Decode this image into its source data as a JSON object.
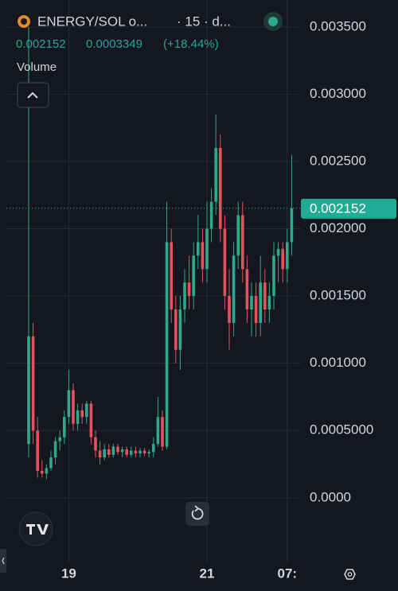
{
  "header": {
    "symbol": "ENERGY/SOL o...",
    "interval": "· 15 · d...",
    "last": "0.002152",
    "change": "0.0003349",
    "change_pct": "(+18.44%)",
    "volume": "Volume"
  },
  "chart_data": {
    "type": "candlestick",
    "categories": [
      null,
      null,
      null,
      null,
      null,
      null,
      null,
      null,
      null,
      "19",
      null,
      null,
      null,
      null,
      null,
      null,
      null,
      null,
      null,
      null,
      null,
      null,
      null,
      null,
      null,
      null,
      null,
      null,
      null,
      null,
      null,
      null,
      null,
      null,
      null,
      null,
      null,
      null,
      null,
      null,
      "21",
      null,
      null,
      null,
      null,
      null,
      null,
      null,
      null,
      null,
      null,
      null,
      null,
      null,
      null,
      null,
      null,
      null,
      "07:",
      null
    ],
    "open": [
      0.0004,
      0.0012,
      0.0005,
      0.0002,
      0.00018,
      0.00022,
      0.0003,
      0.00042,
      0.00045,
      0.0006,
      0.0008,
      0.00055,
      0.00065,
      0.0006,
      0.0007,
      0.00045,
      0.00035,
      0.0003,
      0.00036,
      0.00032,
      0.00038,
      0.00034,
      0.00036,
      0.00032,
      0.00035,
      0.00033,
      0.00035,
      0.00033,
      0.00034,
      0.0004,
      0.0006,
      0.00038,
      0.0019,
      0.0014,
      0.0011,
      0.0014,
      0.0016,
      0.0015,
      0.0018,
      0.0019,
      0.0017,
      0.002,
      0.0022,
      0.0026,
      0.002,
      0.0015,
      0.0013,
      0.0018,
      0.0021,
      0.0017,
      0.0014,
      0.0015,
      0.0013,
      0.0016,
      0.0014,
      0.0015,
      0.0018,
      0.00185,
      0.0017,
      0.0019
    ],
    "high": [
      0.0035,
      0.0013,
      0.0006,
      0.00028,
      0.00025,
      0.00035,
      0.00045,
      0.0005,
      0.00065,
      0.00095,
      0.00085,
      0.0007,
      0.0007,
      0.00072,
      0.00072,
      0.0005,
      0.00042,
      0.0004,
      0.0004,
      0.0004,
      0.0004,
      0.00038,
      0.00038,
      0.00038,
      0.00038,
      0.00037,
      0.00037,
      0.00036,
      0.00045,
      0.00075,
      0.00065,
      0.0022,
      0.002,
      0.0015,
      0.0015,
      0.0017,
      0.0018,
      0.0019,
      0.0021,
      0.002,
      0.0022,
      0.0023,
      0.00285,
      0.0027,
      0.0021,
      0.0017,
      0.0019,
      0.0022,
      0.0022,
      0.0018,
      0.0016,
      0.0016,
      0.0018,
      0.0017,
      0.0016,
      0.0019,
      0.0019,
      0.0019,
      0.002,
      0.00255
    ],
    "low": [
      0.0003,
      0.0004,
      0.00015,
      0.00015,
      0.00014,
      0.0002,
      0.00025,
      0.00035,
      0.0004,
      0.00055,
      0.0005,
      0.0005,
      0.00055,
      0.00055,
      0.0004,
      0.0003,
      0.00025,
      0.00028,
      0.0003,
      0.0003,
      0.00032,
      0.0003,
      0.0003,
      0.0003,
      0.0003,
      0.0003,
      0.00031,
      0.0003,
      0.0003,
      0.00038,
      0.00035,
      0.00036,
      0.0013,
      0.001,
      0.00095,
      0.0013,
      0.0014,
      0.0014,
      0.0017,
      0.0016,
      0.0016,
      0.0019,
      0.0021,
      0.0019,
      0.0014,
      0.0011,
      0.0012,
      0.0017,
      0.0016,
      0.0013,
      0.0012,
      0.0012,
      0.0012,
      0.0013,
      0.0013,
      0.0014,
      0.0016,
      0.0016,
      0.0016,
      0.0018
    ],
    "close": [
      0.0012,
      0.0005,
      0.0002,
      0.00018,
      0.00022,
      0.0003,
      0.00042,
      0.00045,
      0.0006,
      0.0008,
      0.00055,
      0.00065,
      0.0006,
      0.0007,
      0.00045,
      0.00035,
      0.0003,
      0.00036,
      0.00032,
      0.00038,
      0.00034,
      0.00036,
      0.00032,
      0.00035,
      0.00033,
      0.00035,
      0.00033,
      0.00034,
      0.0004,
      0.0006,
      0.00038,
      0.0019,
      0.0014,
      0.0011,
      0.0014,
      0.0016,
      0.0015,
      0.0018,
      0.0019,
      0.0017,
      0.002,
      0.0022,
      0.0026,
      0.002,
      0.0015,
      0.0013,
      0.0018,
      0.0021,
      0.0017,
      0.0014,
      0.0015,
      0.0013,
      0.0016,
      0.0014,
      0.0015,
      0.0018,
      0.00185,
      0.0017,
      0.0019,
      0.002152
    ],
    "up_color": "#2ea98f",
    "down_color": "#e5525b",
    "ylim": [
      -0.00048,
      0.0037
    ],
    "yticks": [
      {
        "value": 0,
        "label": "0.0000"
      },
      {
        "value": 0.0005,
        "label": "0.0005000"
      },
      {
        "value": 0.001,
        "label": "0.001000"
      },
      {
        "value": 0.0015,
        "label": "0.001500"
      },
      {
        "value": 0.002,
        "label": "0.002000"
      },
      {
        "value": 0.0025,
        "label": "0.002500"
      },
      {
        "value": 0.003,
        "label": "0.003000"
      },
      {
        "value": 0.0035,
        "label": "0.003500"
      }
    ],
    "last_price": {
      "value": 0.002152,
      "label": "0.002152"
    },
    "grid": true
  }
}
